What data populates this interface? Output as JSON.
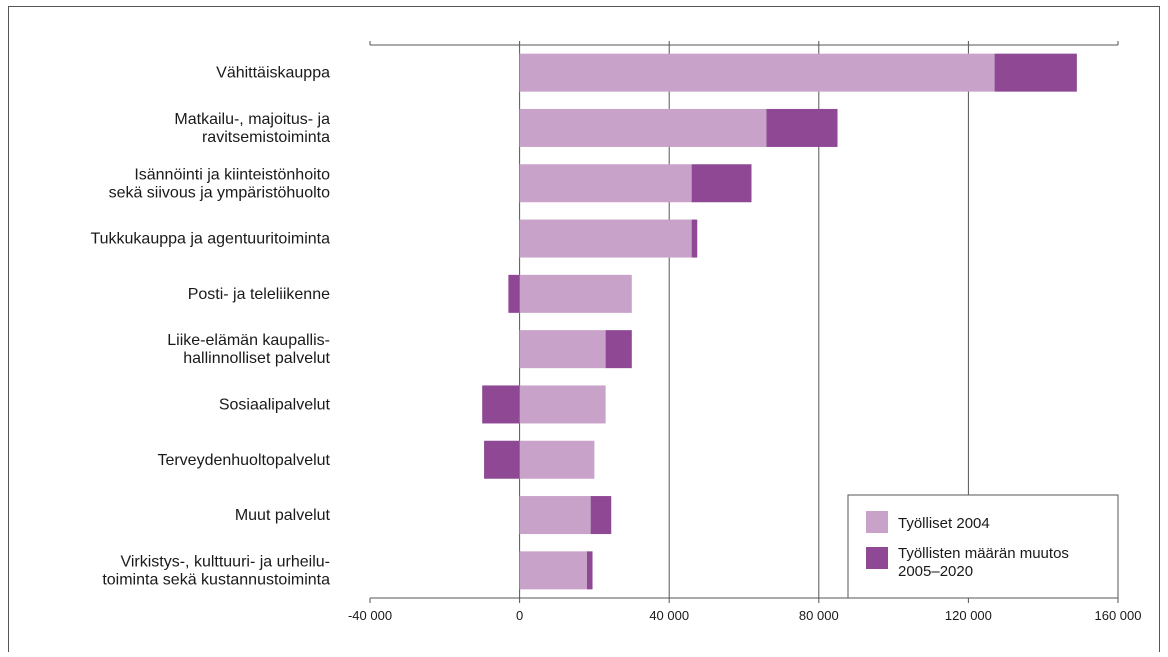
{
  "chart_data": {
    "type": "bar",
    "orientation": "horizontal",
    "stacked": true,
    "categories": [
      [
        "Vähittäiskauppa"
      ],
      [
        "Matkailu-, majoitus- ja",
        "ravitsemistoiminta"
      ],
      [
        "Isännöinti ja kiinteistönhoito",
        "sekä siivous ja ympäristöhuolto"
      ],
      [
        "Tukkukauppa ja agentuuritoiminta"
      ],
      [
        "Posti- ja teleliikenne"
      ],
      [
        "Liike-elämän kaupallis-",
        "hallinnolliset palvelut"
      ],
      [
        "Sosiaalipalvelut"
      ],
      [
        "Terveydenhuoltopalvelut"
      ],
      [
        "Muut palvelut"
      ],
      [
        "Virkistys-, kulttuuri- ja urheilu-",
        "toiminta sekä kustannustoiminta"
      ]
    ],
    "series": [
      {
        "name": "Työlliset 2004",
        "color": "#c8a2c8",
        "values": [
          127000,
          66000,
          46000,
          46000,
          30000,
          23000,
          23000,
          20000,
          19000,
          18000
        ]
      },
      {
        "name": [
          "Työllisten määrän muutos",
          "2005–2020"
        ],
        "color": "#8e4894",
        "values": [
          22000,
          19000,
          16000,
          1500,
          -3000,
          7000,
          -10000,
          -9500,
          5500,
          1500
        ]
      }
    ],
    "xlim": [
      -40000,
      160000
    ],
    "xticks": [
      -40000,
      0,
      40000,
      80000,
      120000,
      160000
    ],
    "xtick_labels": [
      "-40 000",
      "0",
      "40 000",
      "80 000",
      "120 000",
      "160 000"
    ],
    "gridlines": [
      0,
      40000,
      80000,
      120000
    ],
    "legend_position": "bottom-right"
  }
}
